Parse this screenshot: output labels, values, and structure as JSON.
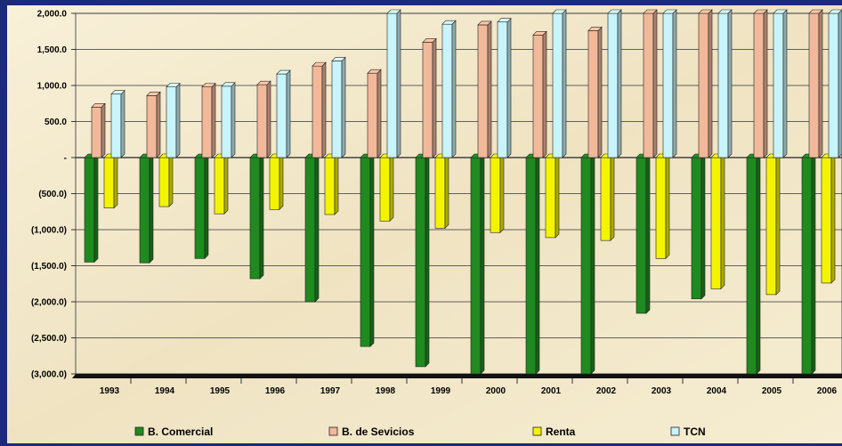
{
  "chart_data": {
    "type": "bar",
    "title": "",
    "categories": [
      "1993",
      "1994",
      "1995",
      "1996",
      "1997",
      "1998",
      "1999",
      "2000",
      "2001",
      "2002",
      "2003",
      "2004",
      "2005",
      "2006"
    ],
    "series": [
      {
        "name": "B. Comercial",
        "color": "#1f8a1f",
        "values": [
          -1450,
          -1460,
          -1400,
          -1680,
          -2000,
          -2620,
          -2900,
          -3000,
          -3000,
          -3000,
          -2160,
          -1960,
          -3000,
          -3000
        ]
      },
      {
        "name": "B. de Sevicios",
        "color": "#f2b89a",
        "values": [
          700,
          860,
          980,
          1010,
          1270,
          1170,
          1600,
          1840,
          1700,
          1760,
          2000,
          2000,
          2000,
          2000
        ]
      },
      {
        "name": "Renta",
        "color": "#f4f400",
        "values": [
          -700,
          -680,
          -780,
          -720,
          -790,
          -880,
          -980,
          -1040,
          -1110,
          -1150,
          -1400,
          -1820,
          -1900,
          -1740
        ]
      },
      {
        "name": "TCN",
        "color": "#c8f4fb",
        "values": [
          880,
          980,
          990,
          1160,
          1340,
          2000,
          1850,
          1880,
          2000,
          2000,
          2000,
          2000,
          2000,
          2000
        ]
      }
    ],
    "y_ticks": [
      2000,
      1500,
      1000,
      500,
      0,
      -500,
      -1000,
      -1500,
      -2000,
      -2500,
      -3000
    ],
    "y_tick_labels": [
      "2,000.0",
      "1,500.0",
      "1,000.0",
      "500.0",
      "-",
      "(500.0)",
      "(1,000.0)",
      "(1,500.0)",
      "(2,000.0)",
      "(2,500.0)",
      "(3,000.0)"
    ],
    "ylim": [
      -3000,
      2000
    ],
    "grid": true,
    "legend": "bottom"
  }
}
